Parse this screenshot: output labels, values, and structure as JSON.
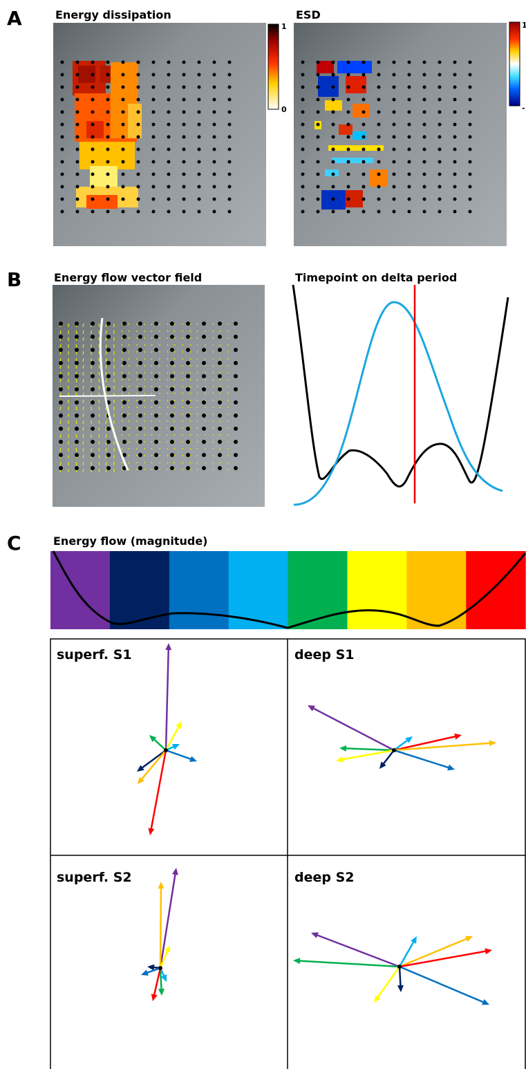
{
  "panels": [
    {
      "letter": "A",
      "items": [
        {
          "title": "Energy dissipation",
          "colorbar": {
            "max": "1",
            "min": "0"
          }
        },
        {
          "title": "ESD",
          "colorbar": {
            "max": "1",
            "min": "-"
          }
        }
      ]
    },
    {
      "letter": "B",
      "items": [
        {
          "title": "Energy flow vector field"
        },
        {
          "title": "Timepoint on delta period"
        }
      ]
    },
    {
      "letter": "C",
      "title": "Energy flow (magnitude)",
      "boxes": [
        {
          "title": "superf. S1"
        },
        {
          "title": "deep S1"
        },
        {
          "title": "superf. S2"
        },
        {
          "title": "deep S2"
        }
      ]
    }
  ]
}
